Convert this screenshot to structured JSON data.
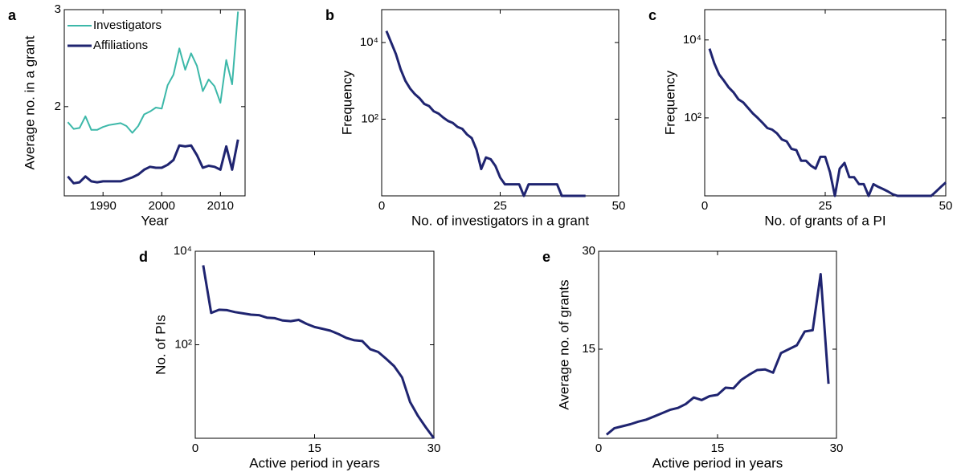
{
  "chart_data": [
    {
      "type": "line",
      "label": "a",
      "xlabel": "Year",
      "ylabel": "Average no. in a grant",
      "x": [
        1984,
        1985,
        1986,
        1987,
        1988,
        1989,
        1990,
        1991,
        1992,
        1993,
        1994,
        1995,
        1996,
        1997,
        1998,
        1999,
        2000,
        2001,
        2002,
        2003,
        2004,
        2005,
        2006,
        2007,
        2008,
        2009,
        2010,
        2011,
        2012,
        2013
      ],
      "series": [
        {
          "name": "Investigators",
          "color": "#3cb8a9",
          "values": [
            1.84,
            1.77,
            1.78,
            1.9,
            1.76,
            1.76,
            1.79,
            1.81,
            1.82,
            1.83,
            1.8,
            1.73,
            1.8,
            1.92,
            1.95,
            1.99,
            1.98,
            2.22,
            2.33,
            2.6,
            2.38,
            2.55,
            2.42,
            2.16,
            2.28,
            2.21,
            2.04,
            2.48,
            2.23,
            2.98
          ]
        },
        {
          "name": "Affiliations",
          "color": "#1f2470",
          "values": [
            1.28,
            1.21,
            1.22,
            1.28,
            1.23,
            1.22,
            1.23,
            1.23,
            1.23,
            1.23,
            1.25,
            1.27,
            1.3,
            1.35,
            1.38,
            1.37,
            1.37,
            1.4,
            1.45,
            1.6,
            1.59,
            1.6,
            1.5,
            1.37,
            1.39,
            1.38,
            1.35,
            1.59,
            1.35,
            1.66
          ]
        }
      ],
      "xlim": [
        1983.4,
        2014.2
      ],
      "xticks": [
        1990,
        2000,
        2010
      ],
      "ylim": [
        1.08,
        3
      ],
      "yticks": [
        2,
        3
      ],
      "legend": "upper left"
    },
    {
      "type": "line",
      "label": "b",
      "xlabel": "No. of investigators in a grant",
      "ylabel": "Frequency",
      "log_y": true,
      "x": [
        1,
        2,
        3,
        4,
        5,
        6,
        7,
        8,
        9,
        10,
        11,
        12,
        13,
        14,
        15,
        16,
        17,
        18,
        19,
        20,
        21,
        22,
        23,
        24,
        25,
        26,
        27,
        28,
        29,
        30,
        31,
        32,
        33,
        34,
        35,
        36,
        37,
        38,
        39,
        40,
        41,
        42,
        43
      ],
      "series": [
        {
          "name": null,
          "color": "#1f2470",
          "values": [
            20000,
            10000,
            5000,
            2000,
            1000,
            630,
            450,
            350,
            250,
            220,
            160,
            140,
            110,
            90,
            80,
            63,
            56,
            40,
            32,
            16,
            5,
            10,
            9,
            6,
            3,
            2,
            2,
            2,
            2,
            1,
            2,
            2,
            2,
            2,
            2,
            2,
            2,
            1,
            1,
            1,
            1,
            1,
            1
          ]
        }
      ],
      "xlim": [
        0,
        50
      ],
      "xticks": [
        0,
        25,
        50
      ],
      "ylim": [
        1,
        72000
      ],
      "yticks": [
        {
          "value": 100,
          "label": "10²"
        },
        {
          "value": 10000,
          "label": "10⁴"
        }
      ]
    },
    {
      "type": "line",
      "label": "c",
      "xlabel": "No. of grants of a PI",
      "ylabel": "Frequency",
      "log_y": true,
      "x": [
        1,
        2,
        3,
        4,
        5,
        6,
        7,
        8,
        9,
        10,
        11,
        12,
        13,
        14,
        15,
        16,
        17,
        18,
        19,
        20,
        21,
        22,
        23,
        24,
        25,
        26,
        27,
        28,
        29,
        30,
        31,
        32,
        33,
        34,
        35,
        36,
        37,
        38,
        39,
        40,
        41,
        42,
        43,
        44,
        45,
        46,
        47,
        48,
        49,
        50
      ],
      "series": [
        {
          "name": null,
          "color": "#1f2470",
          "values": [
            6000,
            2500,
            1300,
            900,
            600,
            450,
            300,
            250,
            180,
            130,
            100,
            75,
            55,
            50,
            40,
            28,
            25,
            16,
            15,
            8,
            8,
            6,
            5,
            10,
            10,
            4,
            1,
            5,
            7,
            3,
            3,
            2,
            2,
            1,
            2,
            1.7,
            1.5,
            1.3,
            1.1,
            1,
            1,
            1,
            1,
            1,
            1,
            1,
            1,
            1.3,
            1.7,
            2.2
          ]
        }
      ],
      "xlim": [
        0,
        50
      ],
      "xticks": [
        0,
        25,
        50
      ],
      "ylim": [
        1,
        60000
      ],
      "yticks": [
        {
          "value": 100,
          "label": "10²"
        },
        {
          "value": 10000,
          "label": "10⁴"
        }
      ]
    },
    {
      "type": "line",
      "label": "d",
      "xlabel": "Active period in years",
      "ylabel": "No. of PIs",
      "log_y": true,
      "x": [
        1,
        2,
        3,
        4,
        5,
        6,
        7,
        8,
        9,
        10,
        11,
        12,
        13,
        14,
        15,
        16,
        17,
        18,
        19,
        20,
        21,
        22,
        23,
        24,
        25,
        26,
        27,
        28,
        29,
        30
      ],
      "series": [
        {
          "name": null,
          "color": "#1f2470",
          "values": [
            5000,
            480,
            560,
            550,
            500,
            470,
            440,
            430,
            380,
            370,
            330,
            320,
            340,
            280,
            240,
            220,
            200,
            170,
            140,
            125,
            120,
            80,
            70,
            50,
            35,
            20,
            6,
            3,
            1.7,
            1
          ]
        }
      ],
      "xlim": [
        0,
        30
      ],
      "xticks": [
        0,
        15,
        30
      ],
      "ylim": [
        1,
        10000
      ],
      "yticks": [
        {
          "value": 100,
          "label": "10²"
        },
        {
          "value": 10000,
          "label": "10⁴"
        }
      ]
    },
    {
      "type": "line",
      "label": "e",
      "xlabel": "Active period in years",
      "ylabel": "Average no. of grants",
      "x": [
        1,
        2,
        3,
        4,
        5,
        6,
        7,
        8,
        9,
        10,
        11,
        12,
        13,
        14,
        15,
        16,
        17,
        18,
        19,
        20,
        21,
        22,
        23,
        24,
        25,
        26,
        27,
        28,
        29
      ],
      "series": [
        {
          "name": null,
          "color": "#1f2470",
          "values": [
            1.9,
            2.9,
            3.2,
            3.5,
            3.9,
            4.2,
            4.7,
            5.2,
            5.7,
            6.0,
            6.6,
            7.6,
            7.2,
            7.8,
            8.0,
            9.1,
            9.0,
            10.3,
            11.1,
            11.8,
            11.9,
            11.4,
            14.4,
            15.0,
            15.6,
            17.7,
            17.9,
            26.5,
            9.7
          ]
        }
      ],
      "xlim": [
        0,
        30
      ],
      "xticks": [
        0,
        15,
        30
      ],
      "ylim": [
        1.35,
        30
      ],
      "yticks": [
        15,
        30
      ]
    }
  ]
}
